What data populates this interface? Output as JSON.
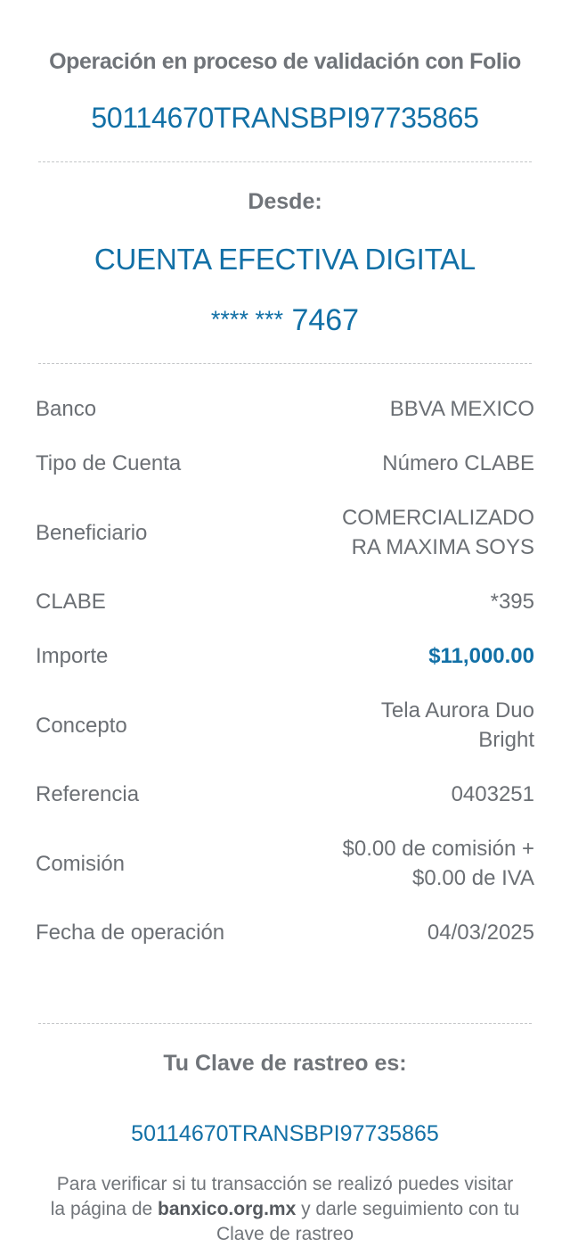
{
  "header": {
    "title": "Operación en proceso de validación con Folio",
    "folio": "50114670TRANSBPI97735865"
  },
  "origin": {
    "label": "Desde:",
    "account_name": "CUENTA EFECTIVA DIGITAL",
    "account_mask": "**** ***",
    "account_last": "7467"
  },
  "details": [
    {
      "label": "Banco",
      "value": "BBVA MEXICO"
    },
    {
      "label": "Tipo de Cuenta",
      "value": "Número CLABE"
    },
    {
      "label": "Beneficiario",
      "value": "COMERCIALIZADORA MAXIMA SOYS"
    },
    {
      "label": "CLABE",
      "value": "*395"
    },
    {
      "label": "Importe",
      "value": "$11,000.00"
    },
    {
      "label": "Concepto",
      "value": "Tela Aurora Duo Bright"
    },
    {
      "label": "Referencia",
      "value": "0403251"
    },
    {
      "label": "Comisión",
      "value": "$0.00 de comisión + $0.00 de IVA"
    },
    {
      "label": "Fecha de operación",
      "value": "04/03/2025"
    }
  ],
  "tracking": {
    "label": "Tu Clave de rastreo es:",
    "code": "50114670TRANSBPI97735865",
    "note_pre": "Para verificar si tu transacción se realizó puedes visitar la página de",
    "note_link": "banxico.org.mx",
    "note_post": "y darle seguimiento con tu Clave de rastreo"
  },
  "colors": {
    "accent": "#1270a6",
    "text_gray": "#707479"
  }
}
